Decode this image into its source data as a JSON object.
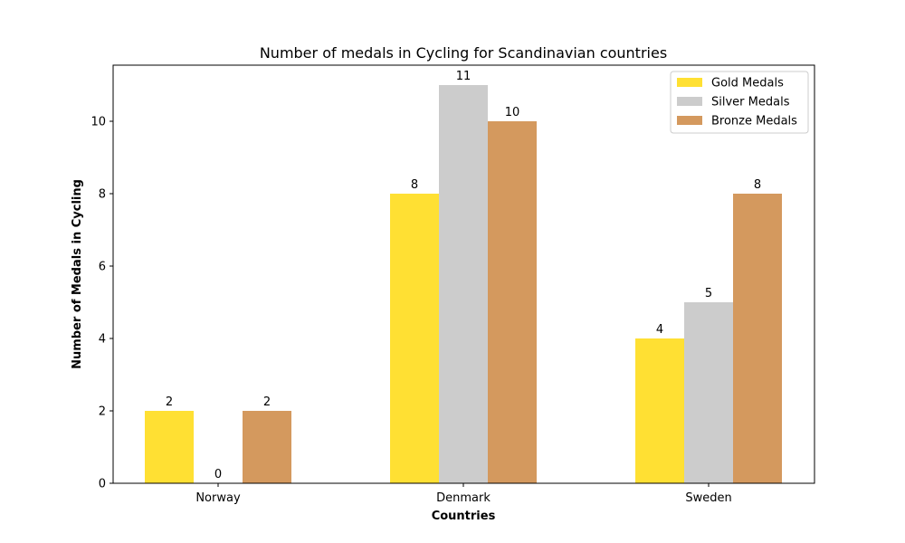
{
  "chart_data": {
    "type": "bar",
    "title": "Number of medals in Cycling for Scandinavian countries",
    "xlabel": "Countries",
    "ylabel": "Number of Medals in Cycling",
    "categories": [
      "Norway",
      "Denmark",
      "Sweden"
    ],
    "series": [
      {
        "name": "Gold Medals",
        "values": [
          2,
          8,
          4
        ],
        "color": "#FFE033"
      },
      {
        "name": "Silver Medals",
        "values": [
          0,
          11,
          5
        ],
        "color": "#CCCCCC"
      },
      {
        "name": "Bronze Medals",
        "values": [
          2,
          10,
          8
        ],
        "color": "#D4995E"
      }
    ],
    "ylim": [
      0,
      11.55
    ],
    "yticks": [
      "0",
      "2",
      "4",
      "6",
      "8",
      "10"
    ],
    "grid": false,
    "legend": "top-right",
    "data_labels": true
  }
}
